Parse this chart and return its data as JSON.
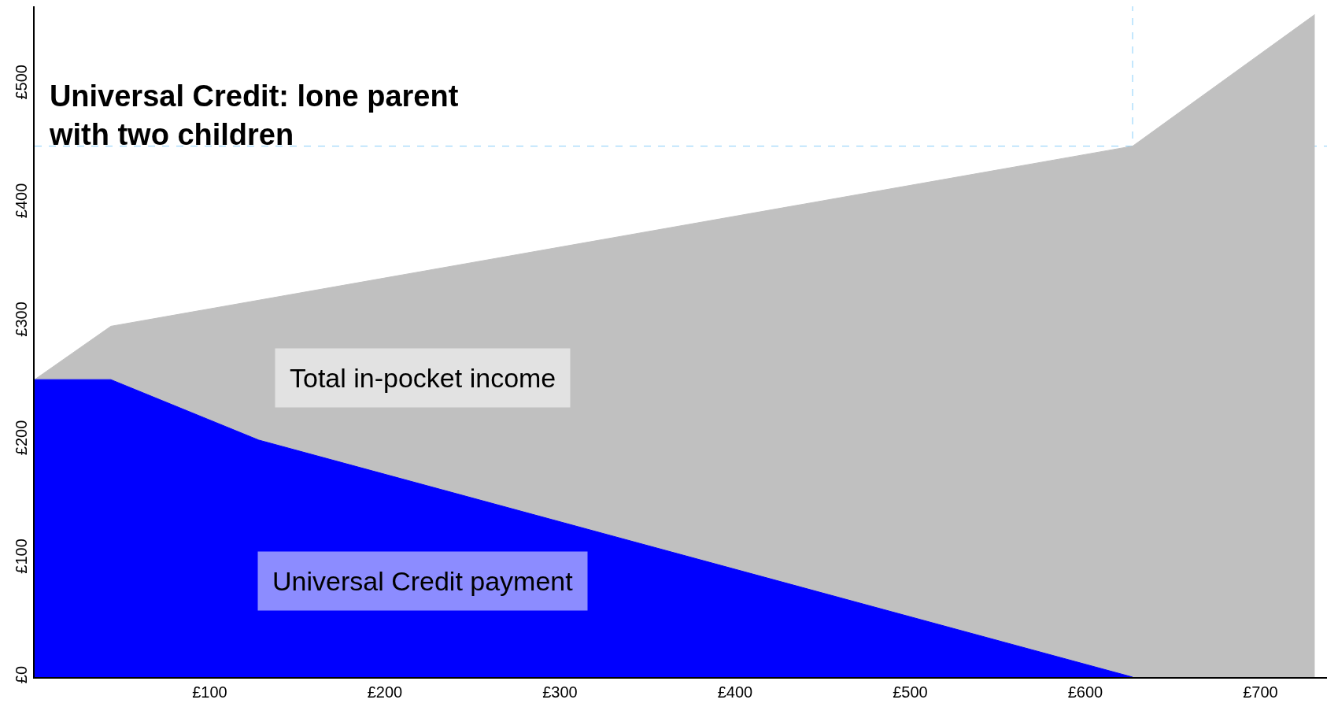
{
  "chart_data": {
    "type": "area",
    "title": "Universal Credit: lone parent with two children",
    "series": [
      {
        "name": "Total in-pocket income",
        "color": "#c0c0c0",
        "x": [
          0,
          43.5,
          627,
          731
        ],
        "values": [
          251,
          296,
          448,
          559
        ]
      },
      {
        "name": "Universal Credit payment",
        "color": "#0000ff",
        "x": [
          0,
          43.5,
          128,
          627
        ],
        "values": [
          251,
          251,
          200,
          0
        ]
      }
    ],
    "ref_lines": [
      {
        "axis": "y",
        "value": 448,
        "color": "#87cefa",
        "line_style": "dashed"
      },
      {
        "axis": "x",
        "value": 627,
        "color": "#87cefa",
        "line_style": "dashed"
      }
    ],
    "xlim": [
      0,
      738
    ],
    "xticks": [
      {
        "value": 100,
        "label": "£100"
      },
      {
        "value": 200,
        "label": "£200"
      },
      {
        "value": 300,
        "label": "£300"
      },
      {
        "value": 400,
        "label": "£400"
      },
      {
        "value": 500,
        "label": "£500"
      },
      {
        "value": 600,
        "label": "£600"
      },
      {
        "value": 700,
        "label": "£700"
      }
    ],
    "ylim": [
      0,
      566
    ],
    "yticks": [
      {
        "value": 0,
        "label": "£0"
      },
      {
        "value": 100,
        "label": "£100"
      },
      {
        "value": 200,
        "label": "£200"
      },
      {
        "value": 300,
        "label": "£300"
      },
      {
        "value": 400,
        "label": "£400"
      },
      {
        "value": 500,
        "label": "£500"
      }
    ],
    "grid": false,
    "legend": false
  }
}
